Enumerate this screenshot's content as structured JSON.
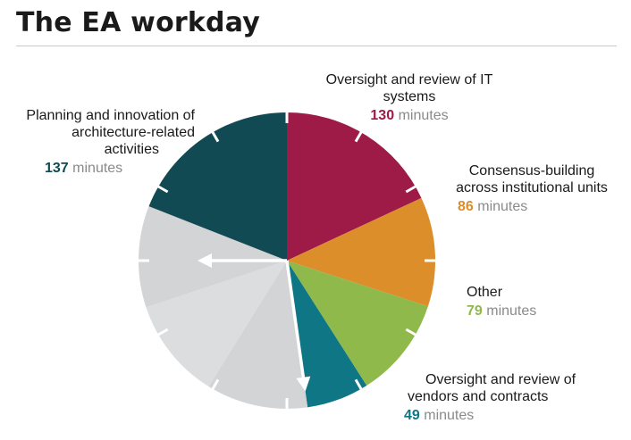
{
  "title": "The EA workday",
  "chart_data": {
    "type": "pie",
    "title": "The EA workday",
    "unit": "minutes",
    "slices": [
      {
        "label": "Oversight and review of IT systems",
        "value": 130,
        "color": "#9e1a47"
      },
      {
        "label": "Consensus-building across institutional units",
        "value": 86,
        "color": "#dc8e2a"
      },
      {
        "label": "Other",
        "value": 79,
        "color": "#8fb94b"
      },
      {
        "label": "Oversight and review of vendors and contracts",
        "value": 49,
        "color": "#0e7684"
      },
      {
        "label": "Planning and innovation of architecture-related activities",
        "value": 137,
        "color": "#124a53"
      }
    ],
    "remaining_color": "#d4d5d7"
  },
  "labels": {
    "it_systems": {
      "line1": "Oversight and review of IT",
      "line2": "systems",
      "value": "130",
      "unit": "minutes"
    },
    "consensus": {
      "line1": "Consensus-building",
      "line2": "across institutional units",
      "value": "86",
      "unit": "minutes"
    },
    "other": {
      "line1": "Other",
      "value": "79",
      "unit": "minutes"
    },
    "vendors": {
      "line1": "Oversight and review of",
      "line2": "vendors and contracts",
      "value": "49",
      "unit": "minutes"
    },
    "planning": {
      "line1": "Planning and innovation of",
      "line2": "architecture-related",
      "line3": "activities",
      "value": "137",
      "unit": "minutes"
    }
  }
}
